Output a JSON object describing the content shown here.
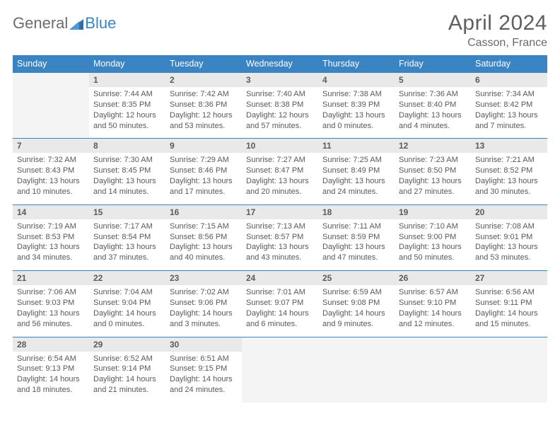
{
  "logo": {
    "part1": "General",
    "part2": "Blue"
  },
  "header": {
    "title": "April 2024",
    "location": "Casson, France"
  },
  "colors": {
    "header_bg": "#3a84c4",
    "header_text": "#ffffff",
    "numrow_bg": "#e9e9e9",
    "empty_bg": "#f4f4f4",
    "text": "#5a5a5a"
  },
  "daynames": [
    "Sunday",
    "Monday",
    "Tuesday",
    "Wednesday",
    "Thursday",
    "Friday",
    "Saturday"
  ],
  "weeks": [
    {
      "nums": [
        "",
        "1",
        "2",
        "3",
        "4",
        "5",
        "6"
      ],
      "cells": [
        null,
        {
          "sunrise": "7:44 AM",
          "sunset": "8:35 PM",
          "dl": "12 hours and 50 minutes."
        },
        {
          "sunrise": "7:42 AM",
          "sunset": "8:36 PM",
          "dl": "12 hours and 53 minutes."
        },
        {
          "sunrise": "7:40 AM",
          "sunset": "8:38 PM",
          "dl": "12 hours and 57 minutes."
        },
        {
          "sunrise": "7:38 AM",
          "sunset": "8:39 PM",
          "dl": "13 hours and 0 minutes."
        },
        {
          "sunrise": "7:36 AM",
          "sunset": "8:40 PM",
          "dl": "13 hours and 4 minutes."
        },
        {
          "sunrise": "7:34 AM",
          "sunset": "8:42 PM",
          "dl": "13 hours and 7 minutes."
        }
      ]
    },
    {
      "nums": [
        "7",
        "8",
        "9",
        "10",
        "11",
        "12",
        "13"
      ],
      "cells": [
        {
          "sunrise": "7:32 AM",
          "sunset": "8:43 PM",
          "dl": "13 hours and 10 minutes."
        },
        {
          "sunrise": "7:30 AM",
          "sunset": "8:45 PM",
          "dl": "13 hours and 14 minutes."
        },
        {
          "sunrise": "7:29 AM",
          "sunset": "8:46 PM",
          "dl": "13 hours and 17 minutes."
        },
        {
          "sunrise": "7:27 AM",
          "sunset": "8:47 PM",
          "dl": "13 hours and 20 minutes."
        },
        {
          "sunrise": "7:25 AM",
          "sunset": "8:49 PM",
          "dl": "13 hours and 24 minutes."
        },
        {
          "sunrise": "7:23 AM",
          "sunset": "8:50 PM",
          "dl": "13 hours and 27 minutes."
        },
        {
          "sunrise": "7:21 AM",
          "sunset": "8:52 PM",
          "dl": "13 hours and 30 minutes."
        }
      ]
    },
    {
      "nums": [
        "14",
        "15",
        "16",
        "17",
        "18",
        "19",
        "20"
      ],
      "cells": [
        {
          "sunrise": "7:19 AM",
          "sunset": "8:53 PM",
          "dl": "13 hours and 34 minutes."
        },
        {
          "sunrise": "7:17 AM",
          "sunset": "8:54 PM",
          "dl": "13 hours and 37 minutes."
        },
        {
          "sunrise": "7:15 AM",
          "sunset": "8:56 PM",
          "dl": "13 hours and 40 minutes."
        },
        {
          "sunrise": "7:13 AM",
          "sunset": "8:57 PM",
          "dl": "13 hours and 43 minutes."
        },
        {
          "sunrise": "7:11 AM",
          "sunset": "8:59 PM",
          "dl": "13 hours and 47 minutes."
        },
        {
          "sunrise": "7:10 AM",
          "sunset": "9:00 PM",
          "dl": "13 hours and 50 minutes."
        },
        {
          "sunrise": "7:08 AM",
          "sunset": "9:01 PM",
          "dl": "13 hours and 53 minutes."
        }
      ]
    },
    {
      "nums": [
        "21",
        "22",
        "23",
        "24",
        "25",
        "26",
        "27"
      ],
      "cells": [
        {
          "sunrise": "7:06 AM",
          "sunset": "9:03 PM",
          "dl": "13 hours and 56 minutes."
        },
        {
          "sunrise": "7:04 AM",
          "sunset": "9:04 PM",
          "dl": "14 hours and 0 minutes."
        },
        {
          "sunrise": "7:02 AM",
          "sunset": "9:06 PM",
          "dl": "14 hours and 3 minutes."
        },
        {
          "sunrise": "7:01 AM",
          "sunset": "9:07 PM",
          "dl": "14 hours and 6 minutes."
        },
        {
          "sunrise": "6:59 AM",
          "sunset": "9:08 PM",
          "dl": "14 hours and 9 minutes."
        },
        {
          "sunrise": "6:57 AM",
          "sunset": "9:10 PM",
          "dl": "14 hours and 12 minutes."
        },
        {
          "sunrise": "6:56 AM",
          "sunset": "9:11 PM",
          "dl": "14 hours and 15 minutes."
        }
      ]
    },
    {
      "nums": [
        "28",
        "29",
        "30",
        "",
        "",
        "",
        ""
      ],
      "cells": [
        {
          "sunrise": "6:54 AM",
          "sunset": "9:13 PM",
          "dl": "14 hours and 18 minutes."
        },
        {
          "sunrise": "6:52 AM",
          "sunset": "9:14 PM",
          "dl": "14 hours and 21 minutes."
        },
        {
          "sunrise": "6:51 AM",
          "sunset": "9:15 PM",
          "dl": "14 hours and 24 minutes."
        },
        null,
        null,
        null,
        null
      ]
    }
  ],
  "labels": {
    "sunrise": "Sunrise: ",
    "sunset": "Sunset: ",
    "daylight": "Daylight: "
  }
}
